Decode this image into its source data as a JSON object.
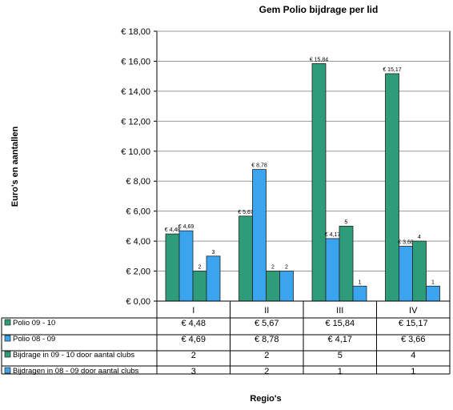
{
  "chart_data": {
    "type": "bar",
    "title": "Gem Polio bijdrage per lid",
    "ylabel": "Euro's en aantallen",
    "xlabel": "Regio's",
    "ylim": [
      0,
      18
    ],
    "ytick_step": 2,
    "ytick_labels": [
      "€ 0,00",
      "€ 2,00",
      "€ 4,00",
      "€ 6,00",
      "€ 8,00",
      "€ 10,00",
      "€ 12,00",
      "€ 14,00",
      "€ 16,00",
      "€ 18,00"
    ],
    "grid": true,
    "legend": "data-table",
    "categories": [
      "I",
      "II",
      "III",
      "IV"
    ],
    "series": [
      {
        "name": "Polio 09 - 10",
        "color": "#2e9c78",
        "values": [
          4.48,
          5.67,
          15.84,
          15.17
        ],
        "labels": [
          "€ 4,48",
          "€ 5,67",
          "€ 15,84",
          "€ 15,17"
        ],
        "table_values": [
          "€ 4,48",
          "€ 5,67",
          "€ 15,84",
          "€ 15,17"
        ]
      },
      {
        "name": "Polio 08 - 09",
        "color": "#3aa4ee",
        "values": [
          4.69,
          8.78,
          4.17,
          3.66
        ],
        "labels": [
          "€ 4,69",
          "€ 8,78",
          "€ 4,17",
          "€ 3,66"
        ],
        "table_values": [
          "€ 4,69",
          "€ 8,78",
          "€ 4,17",
          "€ 3,66"
        ]
      },
      {
        "name": "Bijdrage in 09 - 10 door aantal clubs",
        "color": "#2e9c78",
        "values": [
          2,
          2,
          5,
          4
        ],
        "labels": [
          "2",
          "2",
          "5",
          "4"
        ],
        "table_values": [
          "2",
          "2",
          "5",
          "4"
        ]
      },
      {
        "name": "Bijdragen in 08 - 09 door aantal clubs",
        "color": "#3aa4ee",
        "values": [
          3,
          2,
          1,
          1
        ],
        "labels": [
          "3",
          "2",
          "1",
          "1"
        ],
        "table_values": [
          "3",
          "2",
          "1",
          "1"
        ]
      }
    ]
  }
}
